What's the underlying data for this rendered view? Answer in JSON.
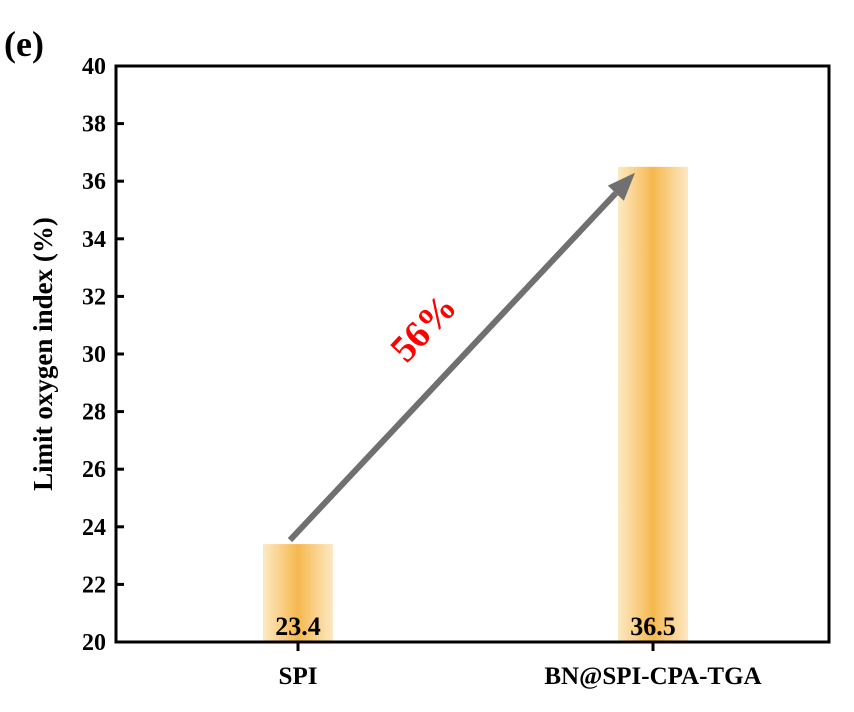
{
  "panel_label": "(e)",
  "chart_data": {
    "type": "bar",
    "categories": [
      "SPI",
      "BN@SPI-CPA-TGA"
    ],
    "values": [
      23.4,
      36.5
    ],
    "data_labels": [
      "23.4",
      "36.5"
    ],
    "ylabel": "Limit oxygen index (%)",
    "xlabel": "",
    "ylim": [
      20,
      40
    ],
    "yticks": [
      20,
      22,
      24,
      26,
      28,
      30,
      32,
      34,
      36,
      38,
      40
    ],
    "grid": false,
    "annotation": {
      "text": "56%",
      "color": "#ff0000",
      "from_category": "SPI",
      "to_category": "BN@SPI-CPA-TGA"
    },
    "colors": {
      "bar_edge": "#fde9c4",
      "bar_center": "#f6b84f",
      "arrow": "#707070"
    }
  }
}
